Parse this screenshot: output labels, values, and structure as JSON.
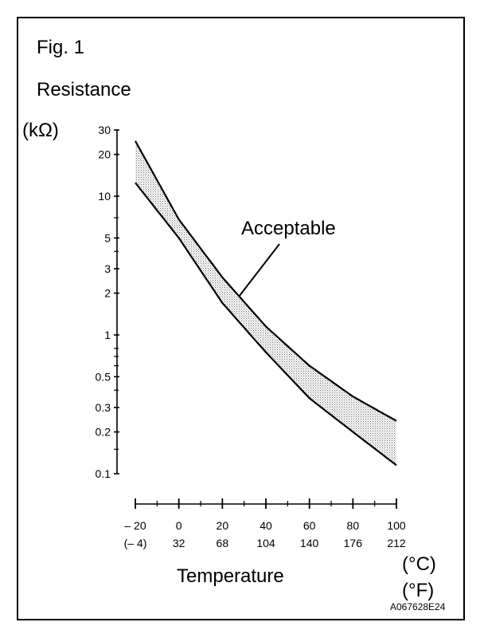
{
  "figure_label": "Fig. 1",
  "ylabel_line1": "Resistance",
  "ylabel_line2": "(kΩ)",
  "xlabel": "Temperature",
  "unit_c": "(°C)",
  "unit_f": "(°F)",
  "image_code": "A067628E24",
  "annotation": "Acceptable",
  "chart_data": {
    "type": "area",
    "yscale": "log",
    "ylim": [
      0.1,
      30
    ],
    "xlim": [
      -20,
      100
    ],
    "xlabel": "Temperature",
    "ylabel": "Resistance (kΩ)",
    "y_ticks": [
      {
        "value": 30,
        "label": "30"
      },
      {
        "value": 20,
        "label": "20"
      },
      {
        "value": 10,
        "label": "10"
      },
      {
        "value": 5,
        "label": "5"
      },
      {
        "value": 3,
        "label": "3"
      },
      {
        "value": 2,
        "label": "2"
      },
      {
        "value": 1,
        "label": "1"
      },
      {
        "value": 0.5,
        "label": "0.5"
      },
      {
        "value": 0.3,
        "label": "0.3"
      },
      {
        "value": 0.2,
        "label": "0.2"
      },
      {
        "value": 0.1,
        "label": "0.1"
      }
    ],
    "y_minor_ticks": [
      7,
      4,
      0.8,
      0.7,
      0.6,
      0.4,
      0.15
    ],
    "x_ticks": [
      {
        "value": -20,
        "label_c": "– 20",
        "label_f": "(– 4)"
      },
      {
        "value": 0,
        "label_c": "0",
        "label_f": "32"
      },
      {
        "value": 20,
        "label_c": "20",
        "label_f": "68"
      },
      {
        "value": 40,
        "label_c": "40",
        "label_f": "104"
      },
      {
        "value": 60,
        "label_c": "60",
        "label_f": "140"
      },
      {
        "value": 80,
        "label_c": "80",
        "label_f": "176"
      },
      {
        "value": 100,
        "label_c": "100",
        "label_f": "212"
      }
    ],
    "x_minor_ticks": [
      -10,
      10,
      30,
      50,
      70,
      90
    ],
    "band": {
      "name": "Acceptable",
      "x": [
        -20,
        0,
        20,
        40,
        60,
        80,
        100
      ],
      "upper": [
        25,
        6.8,
        2.6,
        1.15,
        0.6,
        0.36,
        0.24
      ],
      "lower": [
        12.5,
        5.0,
        1.7,
        0.75,
        0.35,
        0.2,
        0.115
      ]
    }
  }
}
